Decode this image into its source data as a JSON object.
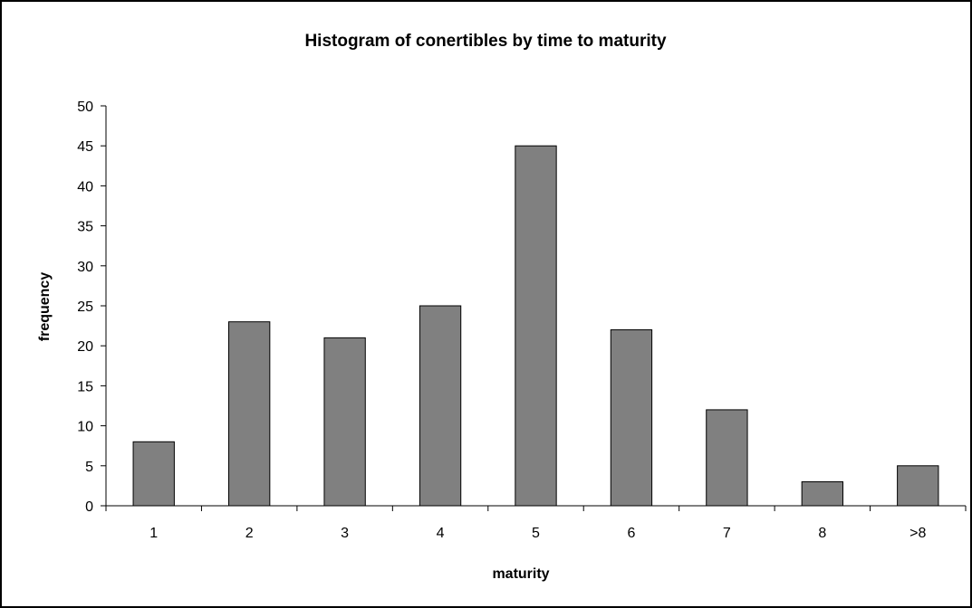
{
  "chart_data": {
    "type": "bar",
    "title": "Histogram of conertibles by time to maturity",
    "xlabel": "maturity",
    "ylabel": "frequency",
    "categories": [
      "1",
      "2",
      "3",
      "4",
      "5",
      "6",
      "7",
      "8",
      ">8"
    ],
    "values": [
      8,
      23,
      21,
      25,
      45,
      22,
      12,
      3,
      5
    ],
    "ylim": [
      0,
      50
    ],
    "y_ticks": [
      "0",
      "5",
      "10",
      "15",
      "20",
      "25",
      "30",
      "35",
      "40",
      "45",
      "50"
    ],
    "grid": false,
    "legend": "none",
    "bar_color": "#808080",
    "bar_edge_color": "#000000"
  }
}
